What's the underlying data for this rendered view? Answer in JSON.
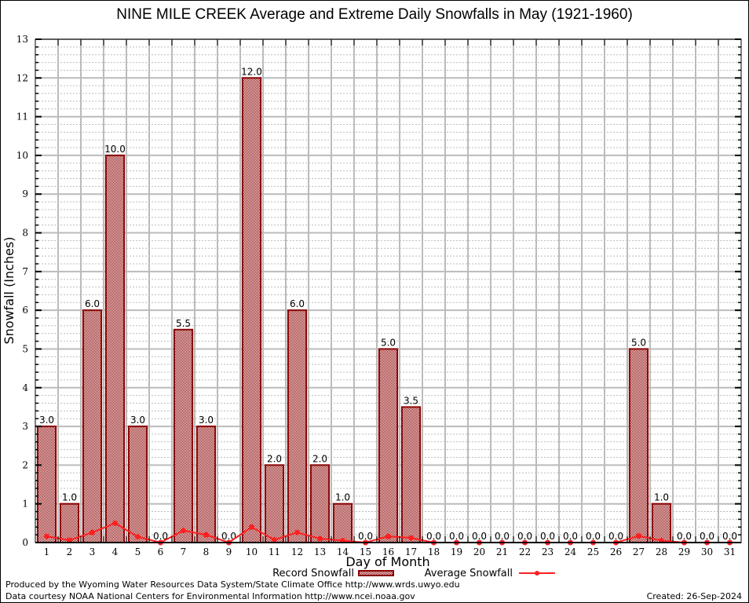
{
  "chart_data": {
    "type": "bar",
    "title": "NINE MILE CREEK Average and Extreme Daily Snowfalls in May (1921-1960)",
    "xlabel": "Day of Month",
    "ylabel": "Snowfall (Inches)",
    "ylim": [
      0,
      13
    ],
    "yticks": [
      0,
      1,
      2,
      3,
      4,
      5,
      6,
      7,
      8,
      9,
      10,
      11,
      12,
      13
    ],
    "grid": true,
    "legend_position": "bottom-center",
    "categories": [
      "1",
      "2",
      "3",
      "4",
      "5",
      "6",
      "7",
      "8",
      "9",
      "10",
      "11",
      "12",
      "13",
      "14",
      "15",
      "16",
      "17",
      "18",
      "19",
      "20",
      "21",
      "22",
      "23",
      "24",
      "25",
      "26",
      "27",
      "28",
      "29",
      "30",
      "31"
    ],
    "series": [
      {
        "name": "Record Snowfall",
        "kind": "bar",
        "color": "#8b0000",
        "values": [
          3.0,
          1.0,
          6.0,
          10.0,
          3.0,
          0.0,
          5.5,
          3.0,
          0.0,
          12.0,
          2.0,
          6.0,
          2.0,
          1.0,
          0.0,
          5.0,
          3.5,
          0.0,
          0.0,
          0.0,
          0.0,
          0.0,
          0.0,
          0.0,
          0.0,
          0.0,
          5.0,
          1.0,
          0.0,
          0.0,
          0.0
        ],
        "labels": [
          "3.0",
          "1.0",
          "6.0",
          "10.0",
          "3.0",
          "0.0",
          "5.5",
          "3.0",
          "0.0",
          "12.0",
          "2.0",
          "6.0",
          "2.0",
          "1.0",
          "0.0",
          "5.0",
          "3.5",
          "0.0",
          "0.0",
          "0.0",
          "0.0",
          "0.0",
          "0.0",
          "0.0",
          "0.0",
          "0.0",
          "5.0",
          "1.0",
          "0.0",
          "0.0",
          "0.0"
        ]
      },
      {
        "name": "Average Snowfall",
        "kind": "line",
        "color": "#ff2020",
        "values": [
          0.16,
          0.06,
          0.26,
          0.5,
          0.15,
          0.0,
          0.31,
          0.2,
          0.0,
          0.4,
          0.07,
          0.26,
          0.1,
          0.05,
          0.0,
          0.16,
          0.12,
          0.0,
          0.0,
          0.0,
          0.0,
          0.0,
          0.0,
          0.0,
          0.0,
          0.0,
          0.17,
          0.05,
          0.0,
          0.0,
          0.0
        ]
      }
    ]
  },
  "footer": {
    "produced_by": "Produced by the Wyoming Water Resources Data System/State Climate Office http://www.wrds.uwyo.edu",
    "data_courtesy": "Data courtesy NOAA National Centers for Environmental Information http://www.ncei.noaa.gov",
    "created": "Created:  26-Sep-2024"
  }
}
